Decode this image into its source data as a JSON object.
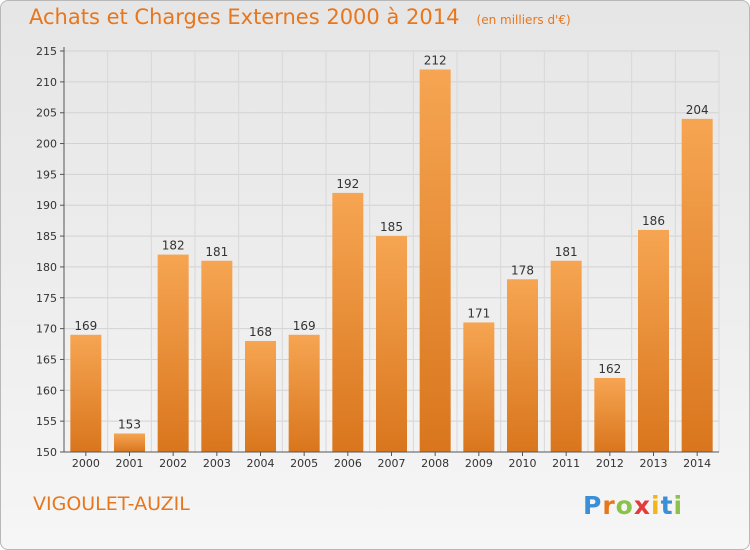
{
  "title": "Achats et Charges Externes 2000 à 2014",
  "unit": "(en milliers d'€)",
  "commune": "VIGOULET-AUZIL",
  "logo": {
    "letters": [
      "P",
      "r",
      "o",
      "x",
      "i",
      "t",
      "i"
    ],
    "colors": [
      "#3a8fd6",
      "#e8761c",
      "#8bc34a",
      "#e33b3b",
      "#f2b51b",
      "#3a8fd6",
      "#8bc34a"
    ]
  },
  "colors": {
    "bar_top": "#f6a552",
    "bar_bottom": "#d9761d",
    "accent": "#e8761c"
  },
  "chart_data": {
    "type": "bar",
    "title": "Achats et Charges Externes 2000 à 2014",
    "subtitle": "(en milliers d'€)",
    "categories": [
      "2000",
      "2001",
      "2002",
      "2003",
      "2004",
      "2005",
      "2006",
      "2007",
      "2008",
      "2009",
      "2010",
      "2011",
      "2012",
      "2013",
      "2014"
    ],
    "values": [
      169,
      153,
      182,
      181,
      168,
      169,
      192,
      185,
      212,
      171,
      178,
      181,
      162,
      186,
      204
    ],
    "ylim": [
      150,
      215
    ],
    "yticks": [
      150,
      155,
      160,
      165,
      170,
      175,
      180,
      185,
      190,
      195,
      200,
      205,
      210,
      215
    ],
    "grid": true
  }
}
